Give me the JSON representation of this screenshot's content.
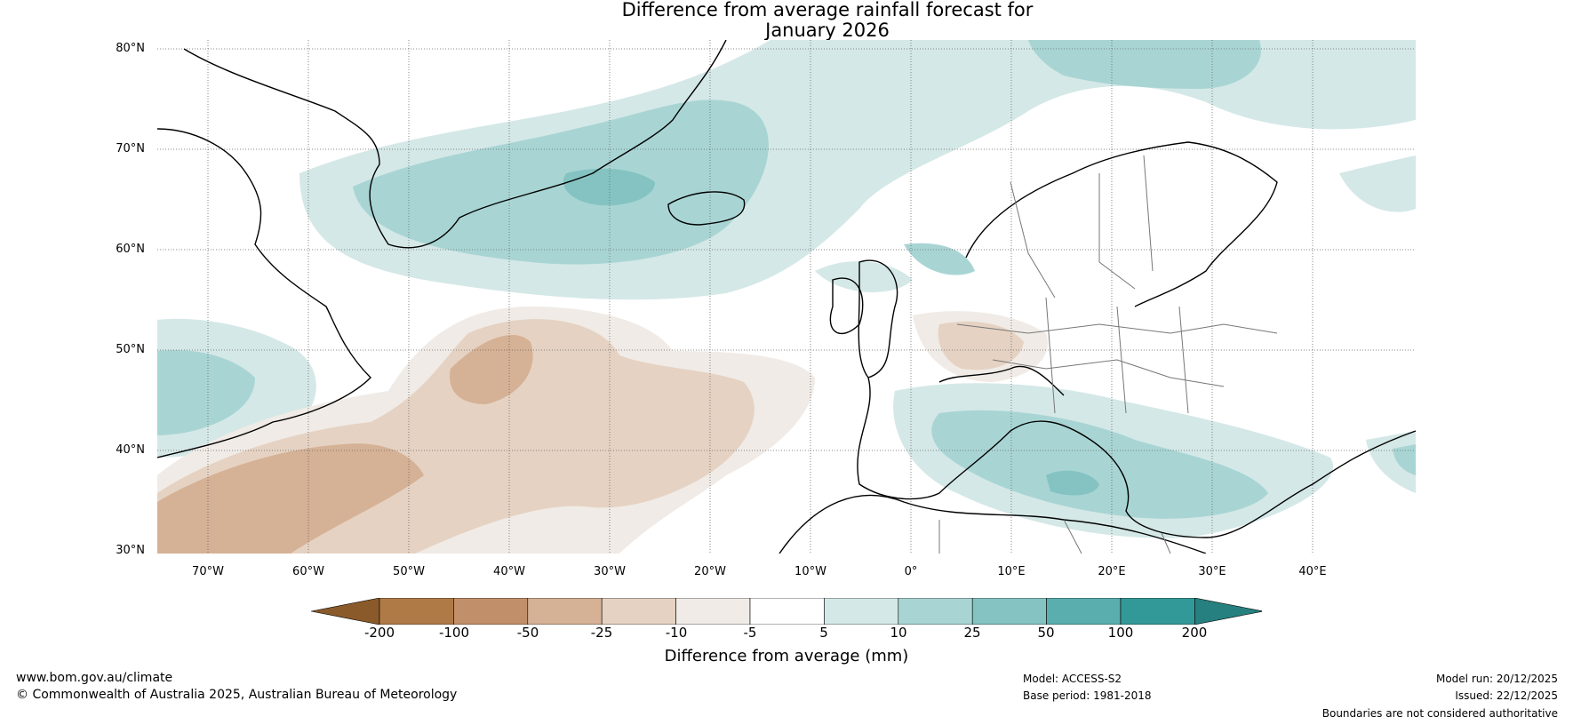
{
  "title": {
    "line1": "Difference from average rainfall forecast for",
    "line2": "January 2026"
  },
  "axes": {
    "latitudes": [
      "80°N",
      "70°N",
      "60°N",
      "50°N",
      "40°N",
      "30°N"
    ],
    "longitudes": [
      "70°W",
      "60°W",
      "50°W",
      "40°W",
      "30°W",
      "20°W",
      "10°W",
      "0°",
      "10°E",
      "20°E",
      "30°E",
      "40°E"
    ]
  },
  "colorbar": {
    "title": "Difference from average (mm)",
    "ticks": [
      "-200",
      "-100",
      "-50",
      "-25",
      "-10",
      "-5",
      "5",
      "10",
      "25",
      "50",
      "100",
      "200"
    ],
    "colors": [
      "#8b5a2b",
      "#b07a47",
      "#c1906a",
      "#d5b195",
      "#e5d2c2",
      "#f0ebe6",
      "#ffffff",
      "#d4e8e7",
      "#a8d5d4",
      "#84c3c1",
      "#5aaeae",
      "#339998",
      "#26807f"
    ]
  },
  "footer": {
    "website": "www.bom.gov.au/climate",
    "copyright": "© Commonwealth of Australia 2025, Australian Bureau of Meteorology",
    "model": "Model: ACCESS-S2",
    "base_period": "Base period: 1981-2018",
    "model_run": "Model run: 20/12/2025",
    "issued": "Issued: 22/12/2025",
    "disclaimer": "Boundaries are not considered authoritative"
  }
}
